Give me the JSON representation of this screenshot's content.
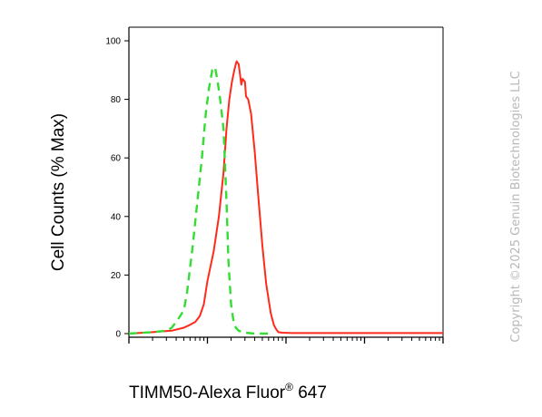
{
  "chart_data": {
    "type": "line",
    "title": "",
    "xlabel": "TIMM50-Alexa Fluor",
    "xlabel_superscript": "®",
    "xlabel_suffix": " 647",
    "ylabel": "Cell Counts (% Max)",
    "ylim": [
      0,
      100
    ],
    "yticks": [
      "0",
      "20",
      "40",
      "60",
      "80",
      "100"
    ],
    "xscale": "log",
    "xlim": [
      0.1,
      1000
    ],
    "grid": false,
    "series": [
      {
        "name": "",
        "color": "#ff2a1a",
        "style": "solid",
        "x": [
          0.1,
          0.2,
          0.35,
          0.5,
          0.6,
          0.7,
          0.8,
          0.9,
          1.0,
          1.2,
          1.4,
          1.6,
          1.75,
          1.9,
          2.05,
          2.2,
          2.35,
          2.5,
          2.7,
          2.8,
          3.0,
          3.1,
          3.3,
          3.6,
          4.0,
          4.4,
          5.0,
          5.6,
          6.4,
          7.0,
          7.5,
          8.0,
          9.0,
          12,
          30,
          1000
        ],
        "y": [
          0,
          0.5,
          1,
          2,
          3,
          4,
          6,
          10,
          18,
          28,
          40,
          55,
          70,
          80,
          86,
          90,
          93,
          92,
          85,
          87,
          86,
          81,
          80,
          75,
          62,
          48,
          30,
          17,
          7,
          3,
          1.5,
          0.5,
          0.3,
          0.2,
          0.2,
          0.2
        ]
      },
      {
        "name": "",
        "color": "#33dd33",
        "style": "dashed",
        "x": [
          0.1,
          0.2,
          0.3,
          0.35,
          0.4,
          0.45,
          0.5,
          0.55,
          0.65,
          0.75,
          0.85,
          0.95,
          1.05,
          1.15,
          1.25,
          1.35,
          1.45,
          1.6,
          1.75,
          1.85,
          2.0,
          2.15,
          2.3,
          2.5,
          3.0,
          4.0,
          6.0
        ],
        "y": [
          0,
          0.5,
          1,
          2,
          4,
          6,
          8,
          14,
          30,
          46,
          60,
          75,
          84,
          90,
          91,
          86,
          80,
          70,
          45,
          25,
          10,
          4,
          2,
          1,
          0.3,
          0,
          0
        ]
      }
    ]
  },
  "watermark": "Copyright ©2025 Genuin Biotechnologies LLC"
}
